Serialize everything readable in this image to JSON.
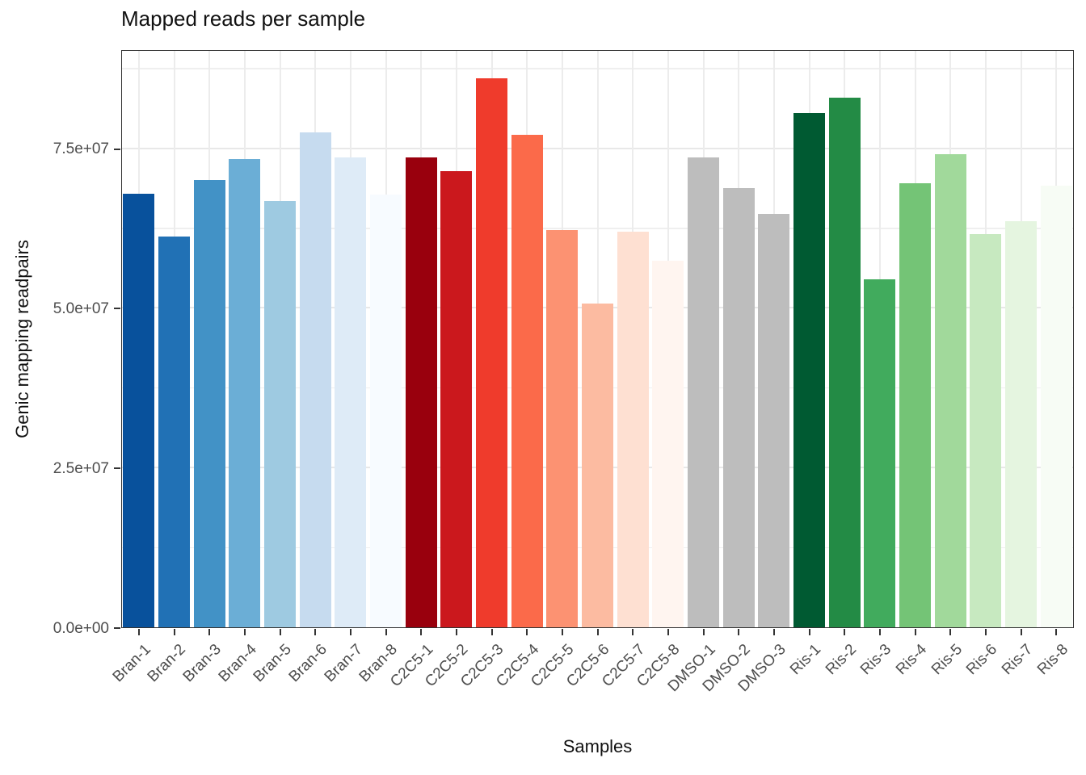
{
  "title": "Mapped reads per sample",
  "chart_data": {
    "type": "bar",
    "title": "Mapped reads per sample",
    "xlabel": "Samples",
    "ylabel": "Genic mapping readpairs",
    "ylim": [
      0,
      90500000
    ],
    "grid": "on",
    "legend": "none",
    "yticks": {
      "values": [
        0,
        25000000,
        50000000,
        75000000
      ],
      "labels": [
        "0.0e+00",
        "2.5e+07",
        "5.0e+07",
        "7.5e+07"
      ]
    },
    "minor_gridlines": [
      12500000,
      37500000,
      62500000,
      87500000
    ],
    "categories": [
      "Bran-1",
      "Bran-2",
      "Bran-3",
      "Bran-4",
      "Bran-5",
      "Bran-6",
      "Bran-7",
      "Bran-8",
      "C2C5-1",
      "C2C5-2",
      "C2C5-3",
      "C2C5-4",
      "C2C5-5",
      "C2C5-6",
      "C2C5-7",
      "C2C5-8",
      "DMSO-1",
      "DMSO-2",
      "DMSO-3",
      "Ris-1",
      "Ris-2",
      "Ris-3",
      "Ris-4",
      "Ris-5",
      "Ris-6",
      "Ris-7",
      "Ris-8"
    ],
    "values": [
      68000000,
      61300000,
      70100000,
      73400000,
      66900000,
      77600000,
      73700000,
      67900000,
      73700000,
      71600000,
      86100000,
      77200000,
      62300000,
      50800000,
      62000000,
      57500000,
      73700000,
      68900000,
      64800000,
      80600000,
      83100000,
      54600000,
      69700000,
      74200000,
      61700000,
      63700000,
      69300000
    ],
    "bar_colors": [
      "#08519C",
      "#2171B5",
      "#4292C6",
      "#6BAED6",
      "#9ECAE1",
      "#C6DBEF",
      "#DEEBF7",
      "#F7FBFF",
      "#99000D",
      "#CB181D",
      "#EF3B2C",
      "#FB6A4A",
      "#FC9272",
      "#FCBBA1",
      "#FEE0D2",
      "#FFF5F0",
      "#BDBDBD",
      "#BDBDBD",
      "#BDBDBD",
      "#005A32",
      "#238B45",
      "#41AB5D",
      "#74C476",
      "#A1D99B",
      "#C7E9C0",
      "#E5F5E0",
      "#F7FCF5"
    ]
  },
  "style": {
    "panel_background": "#FFFFFF",
    "panel_border_color": "#333333",
    "grid_major_color": "#E8E8E8",
    "grid_minor_color": "#EFEFEF",
    "tick_color": "#333333",
    "tick_label_color": "#4D4D4D",
    "title_color": "#111111"
  }
}
